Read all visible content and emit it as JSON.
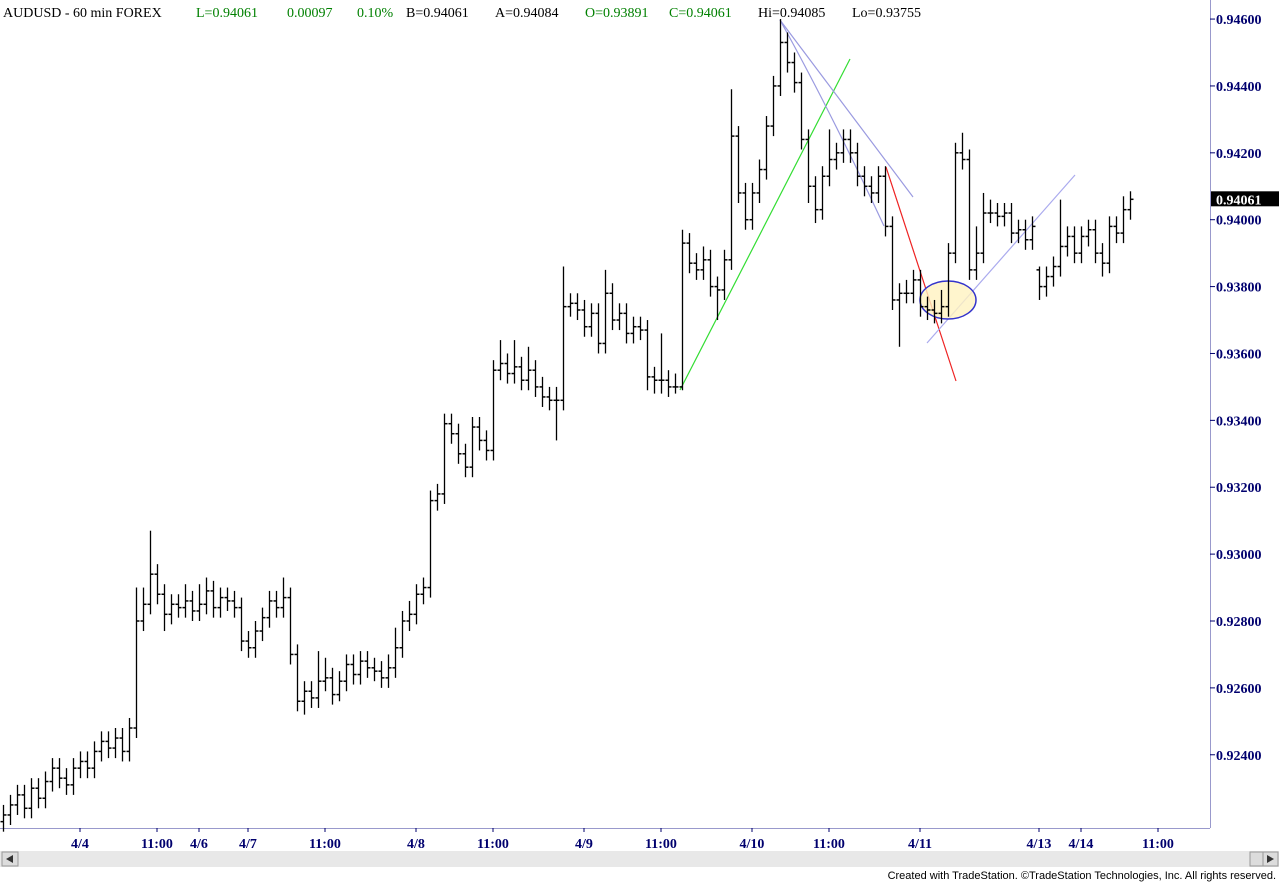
{
  "chart_data": {
    "type": "ohlc",
    "title": "AUDUSD - 60 min  FOREX",
    "quote": [
      {
        "text": "L=0.94061",
        "color": "#008000"
      },
      {
        "text": "0.00097",
        "color": "#008000"
      },
      {
        "text": "0.10%",
        "color": "#008000"
      },
      {
        "text": "B=0.94061",
        "color": "#000000"
      },
      {
        "text": "A=0.94084",
        "color": "#000000"
      },
      {
        "text": "O=0.93891",
        "color": "#008000"
      },
      {
        "text": "C=0.94061",
        "color": "#008000"
      },
      {
        "text": "Hi=0.94085",
        "color": "#000000"
      },
      {
        "text": "Lo=0.93755",
        "color": "#000000"
      }
    ],
    "footer": "Created with TradeStation. ©TradeStation Technologies, Inc. All rights reserved.",
    "color": "#000000",
    "axis_color": "#00006e",
    "ylim": [
      0.92181,
      0.94657
    ],
    "yticks": [
      {
        "value": 0.946,
        "label": "0.94600"
      },
      {
        "value": 0.944,
        "label": "0.94400"
      },
      {
        "value": 0.942,
        "label": "0.94200"
      },
      {
        "value": 0.94,
        "label": "0.94000"
      },
      {
        "value": 0.938,
        "label": "0.93800"
      },
      {
        "value": 0.936,
        "label": "0.93600"
      },
      {
        "value": 0.934,
        "label": "0.93400"
      },
      {
        "value": 0.932,
        "label": "0.93200"
      },
      {
        "value": 0.93,
        "label": "0.93000"
      },
      {
        "value": 0.928,
        "label": "0.92800"
      },
      {
        "value": 0.926,
        "label": "0.92600"
      },
      {
        "value": 0.924,
        "label": "0.92400"
      }
    ],
    "last_value": 0.94061,
    "categories": [
      null,
      null,
      null,
      null,
      null,
      null,
      null,
      null,
      null,
      null,
      null,
      "4/4",
      null,
      null,
      null,
      null,
      null,
      null,
      null,
      null,
      null,
      null,
      "11:00",
      null,
      null,
      null,
      null,
      null,
      "4/6",
      null,
      null,
      null,
      null,
      null,
      null,
      "4/7",
      null,
      null,
      null,
      null,
      null,
      null,
      null,
      null,
      null,
      null,
      "11:00",
      null,
      null,
      null,
      null,
      null,
      null,
      null,
      null,
      null,
      null,
      null,
      null,
      "4/8",
      null,
      null,
      null,
      null,
      null,
      null,
      null,
      null,
      null,
      null,
      "11:00",
      null,
      null,
      null,
      null,
      null,
      null,
      null,
      null,
      null,
      null,
      null,
      null,
      "4/9",
      null,
      null,
      null,
      null,
      null,
      null,
      null,
      null,
      null,
      null,
      "11:00",
      null,
      null,
      null,
      null,
      null,
      null,
      null,
      null,
      null,
      null,
      null,
      null,
      "4/10",
      null,
      null,
      null,
      null,
      null,
      null,
      null,
      null,
      null,
      null,
      "11:00",
      null,
      null,
      null,
      null,
      null,
      null,
      null,
      null,
      null,
      null,
      null,
      null,
      "4/11",
      null,
      null,
      null,
      null,
      null,
      null,
      null,
      null,
      null,
      null,
      null,
      null,
      null,
      null,
      null,
      null,
      "4/13",
      null,
      null,
      null,
      null,
      null,
      "4/14",
      null,
      null,
      null,
      null,
      null,
      null,
      null,
      null,
      null,
      null,
      "11:00"
    ],
    "open": [
      0.922,
      0.9222,
      0.9225,
      0.9228,
      0.9224,
      0.923,
      0.9227,
      0.9232,
      0.9236,
      0.9233,
      0.9231,
      0.9236,
      0.9238,
      0.9236,
      0.9241,
      0.9244,
      0.9242,
      0.9245,
      0.9241,
      0.9248,
      0.928,
      0.9285,
      0.9294,
      0.9288,
      0.9282,
      0.9285,
      0.9284,
      0.9286,
      0.9283,
      0.9285,
      0.9289,
      0.9284,
      0.9287,
      0.9286,
      0.9284,
      0.9274,
      0.9272,
      0.9277,
      0.9281,
      0.9286,
      0.9284,
      0.9287,
      0.927,
      0.9256,
      0.9259,
      0.9257,
      0.9262,
      0.9263,
      0.9258,
      0.9262,
      0.9267,
      0.9264,
      0.9268,
      0.9266,
      0.9265,
      0.9263,
      0.9266,
      0.9272,
      0.928,
      0.9282,
      0.9288,
      0.929,
      0.9316,
      0.9318,
      0.9339,
      0.9336,
      0.933,
      0.9326,
      0.9338,
      0.9334,
      0.9331,
      0.9355,
      0.9357,
      0.9354,
      0.9356,
      0.9352,
      0.9355,
      0.935,
      0.9347,
      0.9346,
      0.9346,
      0.9374,
      0.9375,
      0.9373,
      0.9368,
      0.9372,
      0.9363,
      0.9378,
      0.937,
      0.9372,
      0.9366,
      0.9368,
      0.9367,
      0.9353,
      0.9352,
      0.9352,
      0.935,
      0.935,
      0.9393,
      0.9387,
      0.9385,
      0.9388,
      0.938,
      0.9379,
      0.9388,
      0.9425,
      0.9408,
      0.94,
      0.9408,
      0.9415,
      0.9428,
      0.944,
      0.9453,
      0.9447,
      0.9441,
      0.9424,
      0.941,
      0.9403,
      0.9413,
      0.9418,
      0.942,
      0.9424,
      0.942,
      0.9413,
      0.941,
      0.9408,
      0.9413,
      0.9398,
      0.9376,
      0.9378,
      0.9378,
      0.9382,
      0.9374,
      0.9373,
      0.9372,
      0.9374,
      0.939,
      0.942,
      0.9418,
      0.9385,
      0.939,
      0.9402,
      0.9402,
      0.9401,
      0.9402,
      0.9396,
      0.9397,
      0.9394,
      0.9385,
      0.938,
      0.9383,
      0.9386,
      0.9392,
      0.9395,
      0.939,
      0.9395,
      0.9397,
      0.939,
      0.9387,
      0.9398,
      0.9396,
      0.9403,
      null,
      null,
      null,
      null
    ],
    "high": [
      0.9225,
      0.9228,
      0.9231,
      0.9231,
      0.9233,
      0.9233,
      0.9235,
      0.9239,
      0.9239,
      0.9236,
      0.9239,
      0.9241,
      0.9241,
      0.9244,
      0.9247,
      0.9247,
      0.9248,
      0.9248,
      0.9251,
      0.929,
      0.929,
      0.9307,
      0.9297,
      0.9291,
      0.9288,
      0.9288,
      0.9291,
      0.9289,
      0.9291,
      0.9293,
      0.9292,
      0.929,
      0.929,
      0.9289,
      0.9287,
      0.9277,
      0.928,
      0.9284,
      0.9289,
      0.9289,
      0.9293,
      0.929,
      0.9273,
      0.9262,
      0.9262,
      0.9271,
      0.9269,
      0.9266,
      0.9265,
      0.927,
      0.927,
      0.9271,
      0.9271,
      0.9269,
      0.9268,
      0.927,
      0.9278,
      0.9283,
      0.9286,
      0.9291,
      0.9293,
      0.9319,
      0.9321,
      0.9342,
      0.9342,
      0.9339,
      0.9333,
      0.9341,
      0.9341,
      0.9337,
      0.9358,
      0.9364,
      0.936,
      0.9364,
      0.9359,
      0.9362,
      0.9358,
      0.9353,
      0.935,
      0.935,
      0.9386,
      0.9378,
      0.9378,
      0.9376,
      0.9375,
      0.9375,
      0.9385,
      0.9381,
      0.9375,
      0.9375,
      0.9371,
      0.9371,
      0.937,
      0.9356,
      0.9366,
      0.9355,
      0.9354,
      0.9397,
      0.9396,
      0.939,
      0.9392,
      0.9391,
      0.9383,
      0.9391,
      0.9439,
      0.9428,
      0.9411,
      0.9411,
      0.9418,
      0.9431,
      0.9443,
      0.946,
      0.9456,
      0.945,
      0.9444,
      0.9427,
      0.9413,
      0.9416,
      0.9427,
      0.9423,
      0.9427,
      0.9427,
      0.9423,
      0.9416,
      0.9413,
      0.9416,
      0.9416,
      0.9401,
      0.9381,
      0.9382,
      0.9385,
      0.9385,
      0.9377,
      0.9376,
      0.9379,
      0.9393,
      0.9423,
      0.9426,
      0.9421,
      0.9398,
      0.9408,
      0.9406,
      0.9405,
      0.9405,
      0.9405,
      0.94,
      0.94,
      0.9401,
      0.9386,
      0.9386,
      0.9389,
      0.9406,
      0.9398,
      0.9398,
      0.9398,
      0.94,
      0.94,
      0.9393,
      0.9401,
      0.9401,
      0.9407,
      0.94085,
      null,
      null,
      null,
      null
    ],
    "low": [
      0.9217,
      0.9219,
      0.9222,
      0.9221,
      0.9221,
      0.9224,
      0.9224,
      0.9229,
      0.923,
      0.9228,
      0.9228,
      0.9233,
      0.9233,
      0.9233,
      0.9238,
      0.9239,
      0.9239,
      0.9238,
      0.9238,
      0.9245,
      0.9277,
      0.9282,
      0.9285,
      0.9277,
      0.9279,
      0.9281,
      0.9281,
      0.928,
      0.928,
      0.9282,
      0.9281,
      0.9281,
      0.9283,
      0.9281,
      0.9271,
      0.9269,
      0.9269,
      0.9274,
      0.9278,
      0.9281,
      0.9281,
      0.9267,
      0.9253,
      0.9252,
      0.9254,
      0.9254,
      0.9259,
      0.9255,
      0.9256,
      0.9259,
      0.9261,
      0.9261,
      0.9263,
      0.9262,
      0.926,
      0.926,
      0.9263,
      0.9269,
      0.9277,
      0.9279,
      0.9285,
      0.9287,
      0.9313,
      0.9315,
      0.9333,
      0.9327,
      0.9323,
      0.9323,
      0.9331,
      0.9328,
      0.9328,
      0.9352,
      0.9351,
      0.9351,
      0.9349,
      0.9349,
      0.9347,
      0.9344,
      0.9343,
      0.9334,
      0.9343,
      0.9371,
      0.937,
      0.9365,
      0.9365,
      0.936,
      0.936,
      0.9367,
      0.9367,
      0.9363,
      0.9363,
      0.9364,
      0.9349,
      0.9348,
      0.9348,
      0.9347,
      0.9348,
      0.9349,
      0.9384,
      0.9382,
      0.9382,
      0.9377,
      0.937,
      0.9376,
      0.9385,
      0.9405,
      0.9397,
      0.9397,
      0.9405,
      0.9412,
      0.9425,
      0.9437,
      0.9444,
      0.9438,
      0.9421,
      0.9405,
      0.9399,
      0.94,
      0.941,
      0.9415,
      0.9417,
      0.9417,
      0.941,
      0.9407,
      0.9405,
      0.9405,
      0.9395,
      0.9373,
      0.9362,
      0.9375,
      0.9375,
      0.9371,
      0.937,
      0.9369,
      0.9369,
      0.9371,
      0.9387,
      0.9415,
      0.9382,
      0.9382,
      0.9387,
      0.9399,
      0.9398,
      0.9398,
      0.9393,
      0.9393,
      0.9391,
      0.9391,
      0.9376,
      0.9377,
      0.938,
      0.9383,
      0.9389,
      0.9387,
      0.9387,
      0.9392,
      0.9387,
      0.9383,
      0.9384,
      0.9393,
      0.9393,
      0.94,
      null,
      null,
      null,
      null
    ],
    "close": [
      0.9222,
      0.9225,
      0.9228,
      0.9224,
      0.923,
      0.9227,
      0.9232,
      0.9236,
      0.9233,
      0.9231,
      0.9236,
      0.9238,
      0.9236,
      0.9241,
      0.9244,
      0.9242,
      0.9245,
      0.9241,
      0.9248,
      0.928,
      0.9285,
      0.9294,
      0.9288,
      0.9282,
      0.9285,
      0.9284,
      0.9286,
      0.9283,
      0.9285,
      0.9289,
      0.9284,
      0.9287,
      0.9286,
      0.9284,
      0.9274,
      0.9272,
      0.9277,
      0.9281,
      0.9286,
      0.9284,
      0.9287,
      0.927,
      0.9256,
      0.9259,
      0.9257,
      0.9262,
      0.9263,
      0.9258,
      0.9262,
      0.9267,
      0.9264,
      0.9268,
      0.9266,
      0.9265,
      0.9263,
      0.9266,
      0.9272,
      0.928,
      0.9282,
      0.9288,
      0.929,
      0.9316,
      0.9318,
      0.9339,
      0.9336,
      0.933,
      0.9326,
      0.9338,
      0.9334,
      0.9331,
      0.9355,
      0.9357,
      0.9354,
      0.9356,
      0.9352,
      0.9355,
      0.935,
      0.9347,
      0.9346,
      0.9346,
      0.9374,
      0.9375,
      0.9373,
      0.9368,
      0.9372,
      0.9363,
      0.9378,
      0.937,
      0.9372,
      0.9366,
      0.9368,
      0.9367,
      0.9353,
      0.9352,
      0.9352,
      0.935,
      0.935,
      0.9393,
      0.9387,
      0.9385,
      0.9388,
      0.938,
      0.9379,
      0.9388,
      0.9425,
      0.9408,
      0.94,
      0.9408,
      0.9415,
      0.9428,
      0.944,
      0.9453,
      0.9447,
      0.9441,
      0.9424,
      0.941,
      0.9403,
      0.9413,
      0.9418,
      0.942,
      0.9424,
      0.942,
      0.9413,
      0.941,
      0.9408,
      0.9413,
      0.9398,
      0.9376,
      0.9378,
      0.9378,
      0.9382,
      0.9374,
      0.9373,
      0.9372,
      0.9374,
      0.939,
      0.942,
      0.9418,
      0.9385,
      0.939,
      0.9402,
      0.9402,
      0.9401,
      0.9402,
      0.9396,
      0.9397,
      0.9394,
      0.9398,
      0.938,
      0.9383,
      0.9386,
      0.9392,
      0.9395,
      0.939,
      0.9395,
      0.9397,
      0.939,
      0.9387,
      0.9398,
      0.9396,
      0.9403,
      0.94061,
      null,
      null,
      null,
      null
    ]
  }
}
